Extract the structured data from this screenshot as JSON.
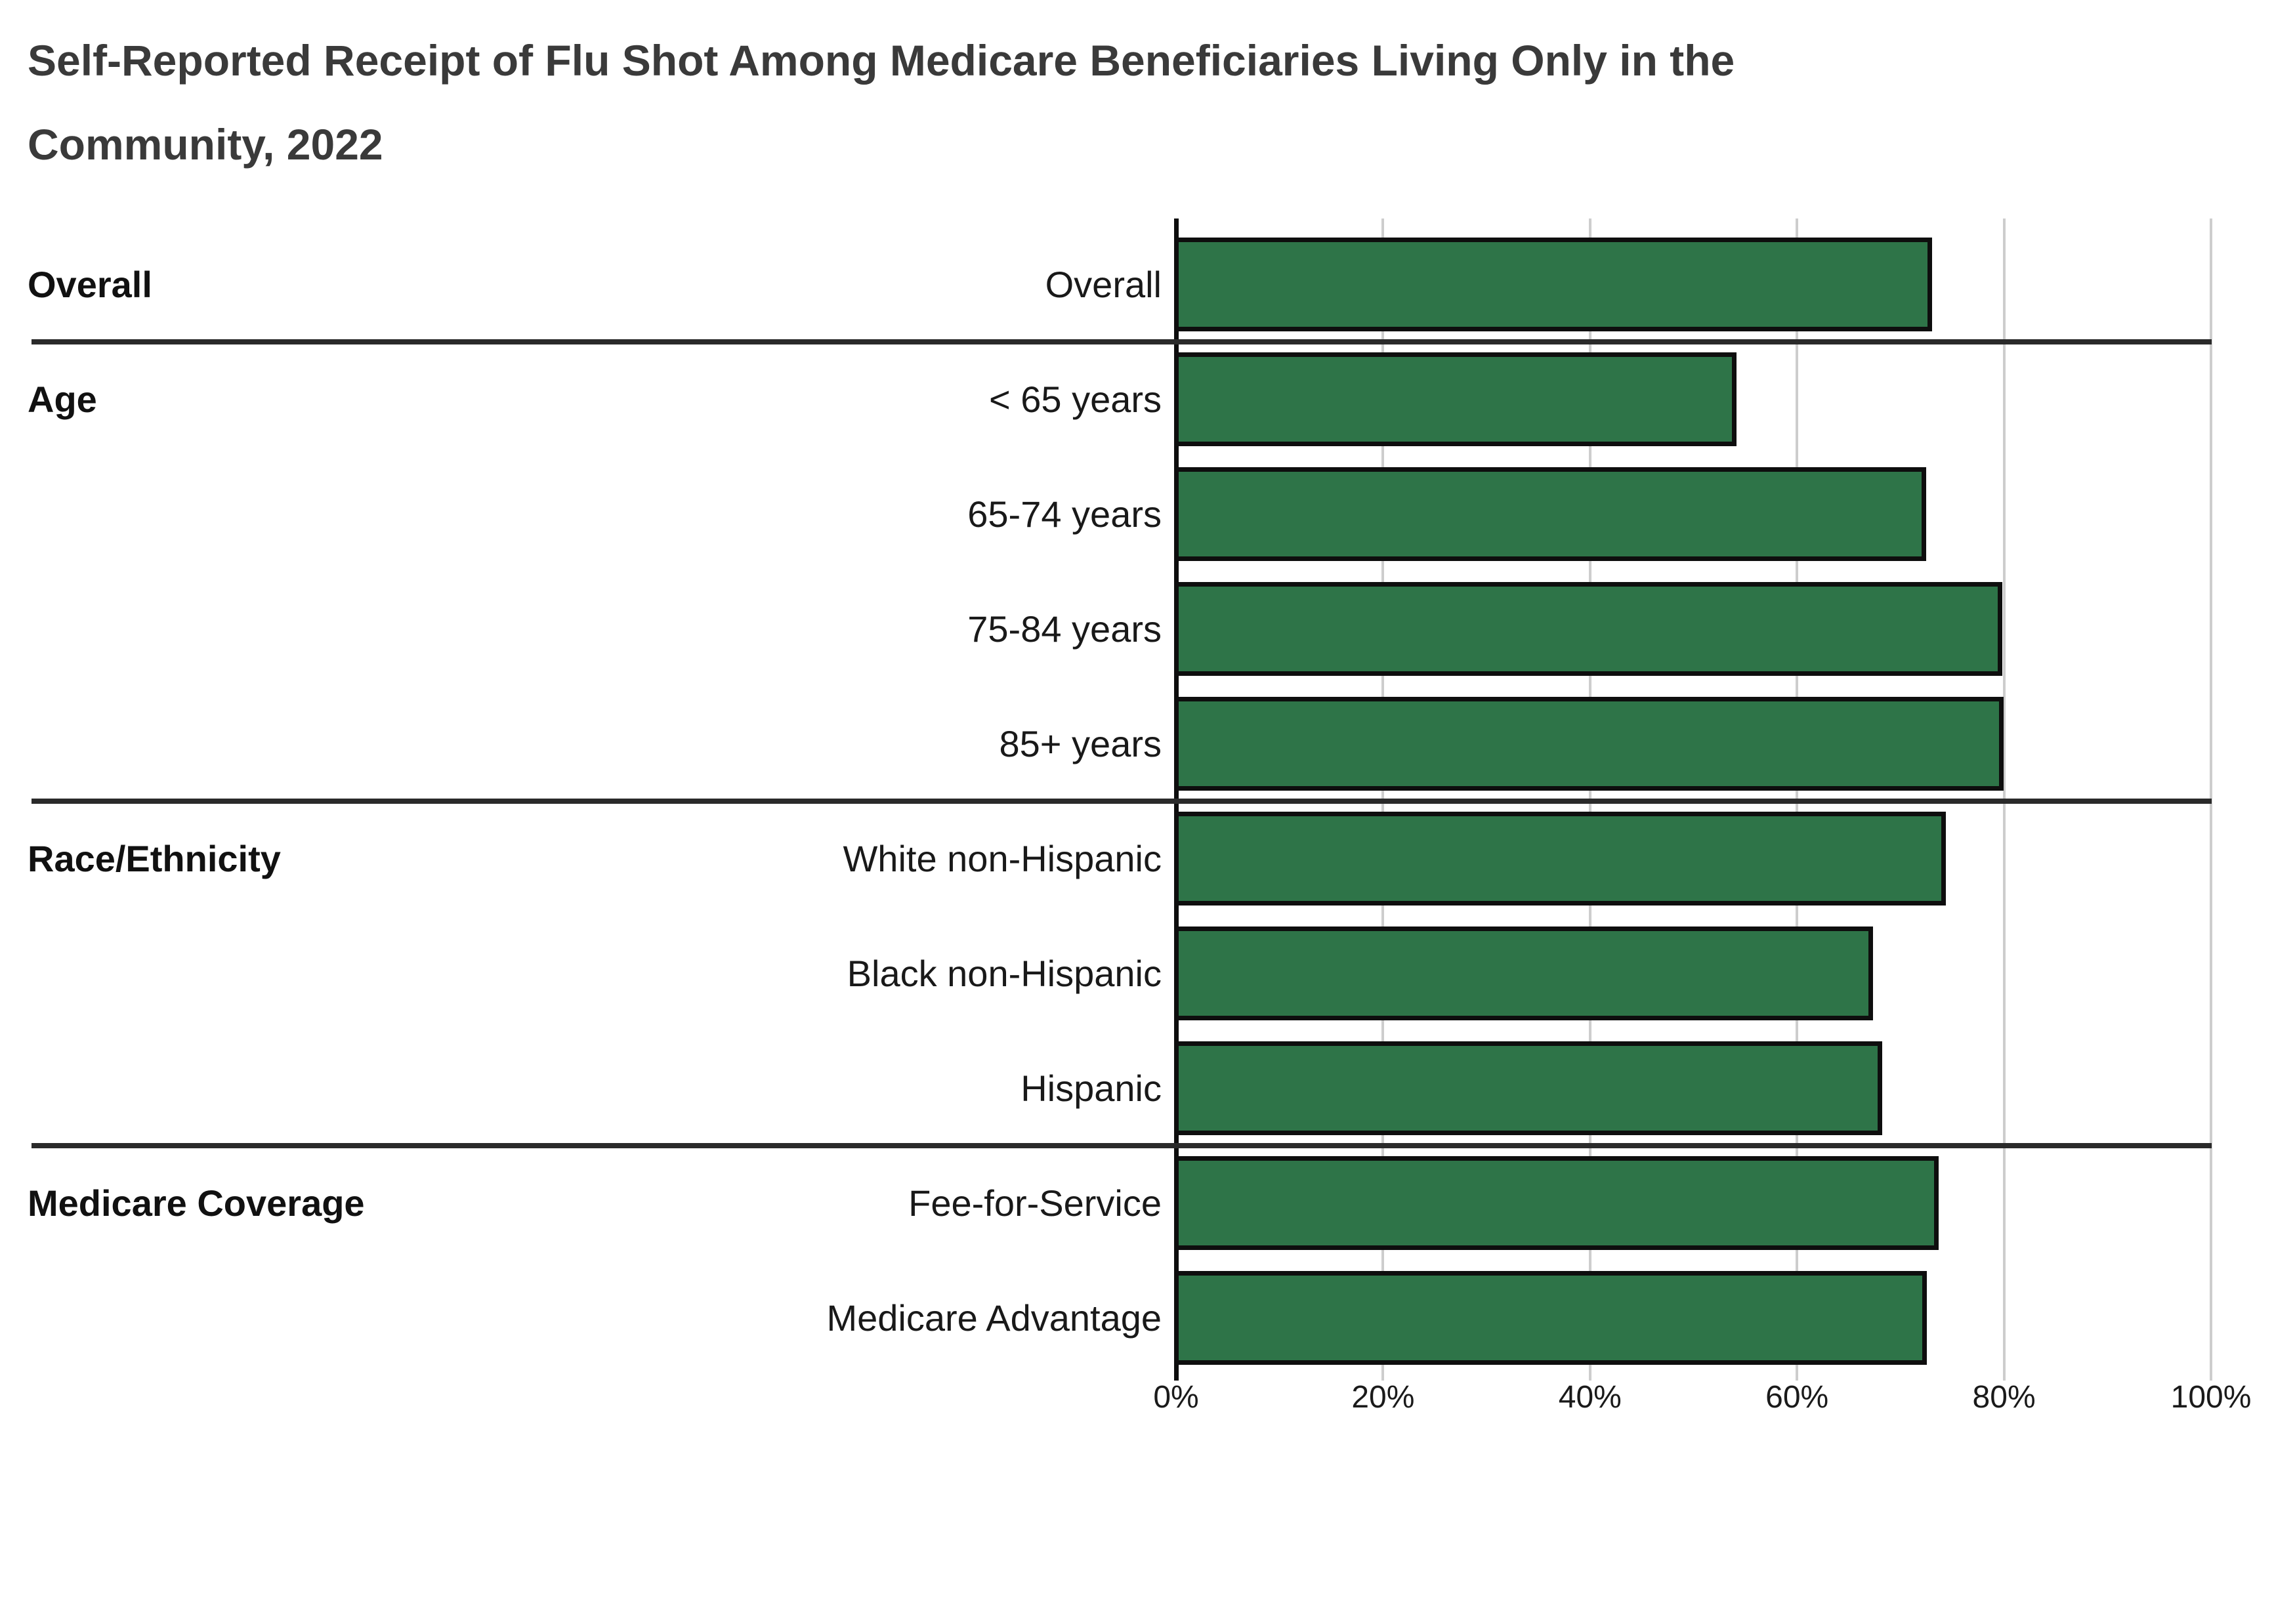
{
  "title": {
    "line1": "Self-Reported Receipt of Flu Shot Among Medicare Beneficiaries Living Only in the",
    "line2": "Community, 2022"
  },
  "chart_data": {
    "type": "bar",
    "orientation": "horizontal",
    "title": "Self-Reported Receipt of Flu Shot Among Medicare Beneficiaries Living Only in the Community, 2022",
    "xlabel": "",
    "ylabel": "",
    "unit": "%",
    "xlim": [
      0,
      100
    ],
    "x_ticks": [
      "0%",
      "20%",
      "40%",
      "60%",
      "80%",
      "100%"
    ],
    "grid": "vertical-light-gray",
    "bar_color": "#2E7448",
    "bar_border_color": "#0e0e0e",
    "groups": [
      {
        "group": "Overall",
        "rows": [
          {
            "label": "Overall",
            "value": 72.8
          }
        ]
      },
      {
        "group": "Age",
        "rows": [
          {
            "label": "< 65 years",
            "value": 53.9
          },
          {
            "label": "65-74 years",
            "value": 72.2
          },
          {
            "label": "75-84 years",
            "value": 79.6
          },
          {
            "label": "85+ years",
            "value": 79.7
          }
        ]
      },
      {
        "group": "Race/Ethnicity",
        "rows": [
          {
            "label": "White non-Hispanic",
            "value": 74.1
          },
          {
            "label": "Black non-Hispanic",
            "value": 67.1
          },
          {
            "label": "Hispanic",
            "value": 68.0
          }
        ]
      },
      {
        "group": "Medicare Coverage",
        "rows": [
          {
            "label": "Fee-for-Service",
            "value": 73.4
          },
          {
            "label": "Medicare Advantage",
            "value": 72.3
          }
        ]
      }
    ]
  }
}
